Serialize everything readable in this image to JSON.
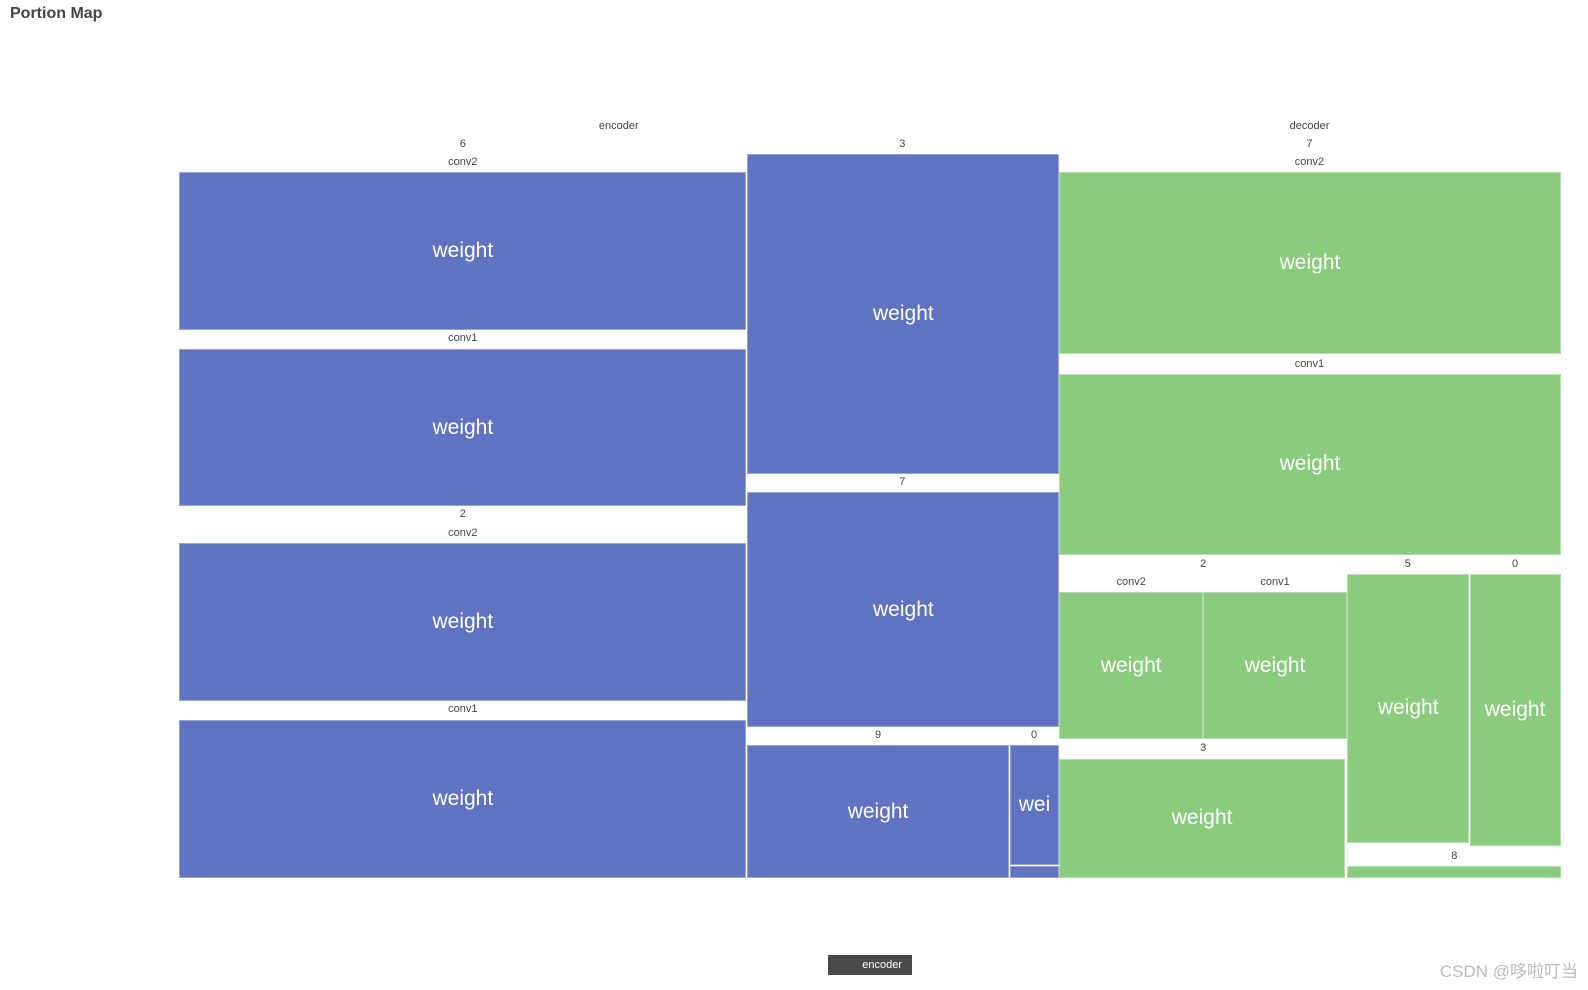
{
  "title": "Portion Map",
  "treemap": {
    "nodes": [
      {
        "label": "encoder",
        "children": [
          {
            "label": "6",
            "children": [
              {
                "label": "conv2",
                "children": [
                  {
                    "label": "weight"
                  }
                ]
              },
              {
                "label": "conv1",
                "children": [
                  {
                    "label": "weight"
                  }
                ]
              }
            ]
          },
          {
            "label": "3",
            "children": [
              {
                "label": "weight"
              }
            ]
          },
          {
            "label": "2",
            "children": [
              {
                "label": "conv2",
                "children": [
                  {
                    "label": "weight"
                  }
                ]
              },
              {
                "label": "conv1",
                "children": [
                  {
                    "label": "weight"
                  }
                ]
              }
            ]
          },
          {
            "label": "7",
            "children": [
              {
                "label": "weight"
              }
            ]
          },
          {
            "label": "9",
            "children": [
              {
                "label": "weight"
              }
            ]
          },
          {
            "label": "0",
            "children": [
              {
                "label": "wei"
              }
            ]
          }
        ]
      },
      {
        "label": "decoder",
        "children": [
          {
            "label": "7",
            "children": [
              {
                "label": "conv2",
                "children": [
                  {
                    "label": "weight"
                  }
                ]
              },
              {
                "label": "conv1",
                "children": [
                  {
                    "label": "weight"
                  }
                ]
              }
            ]
          },
          {
            "label": "2",
            "children": [
              {
                "label": "conv2",
                "children": [
                  {
                    "label": "weight"
                  }
                ]
              },
              {
                "label": "conv1",
                "children": [
                  {
                    "label": "weight"
                  }
                ]
              }
            ]
          },
          {
            "label": "3",
            "children": [
              {
                "label": "weight"
              }
            ]
          },
          {
            "label": "5",
            "children": [
              {
                "label": "weight"
              }
            ]
          },
          {
            "label": "0",
            "children": [
              {
                "label": "weight"
              }
            ]
          },
          {
            "label": "8"
          }
        ]
      }
    ]
  },
  "breadcrumb": "encoder",
  "watermark": "CSDN @哆啦叮当"
}
